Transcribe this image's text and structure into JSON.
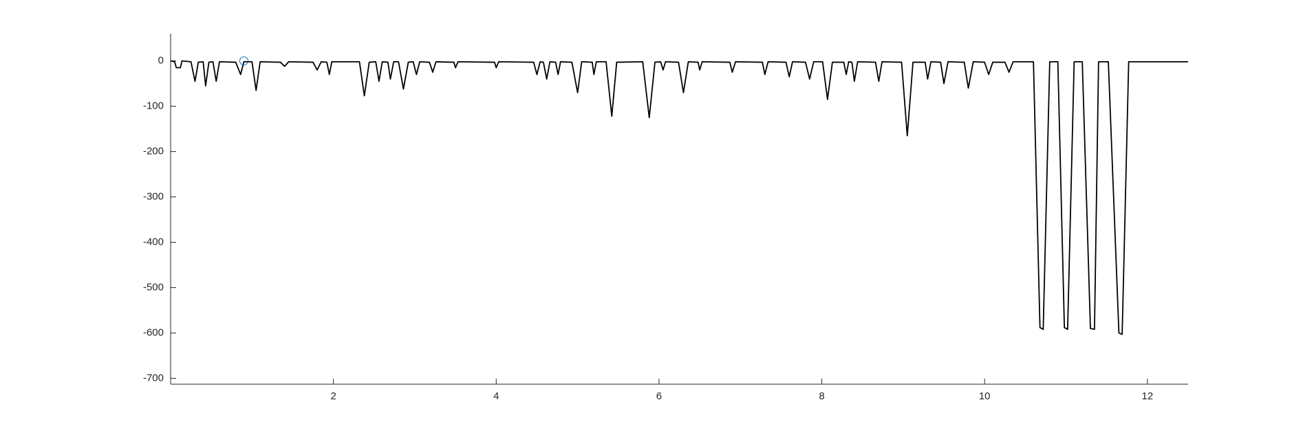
{
  "chart_data": {
    "type": "line",
    "x": [
      0,
      0.05,
      0.07,
      0.12,
      0.14,
      0.25,
      0.3,
      0.34,
      0.4,
      0.43,
      0.47,
      0.52,
      0.56,
      0.6,
      0.8,
      0.86,
      0.9,
      1.0,
      1.05,
      1.1,
      1.35,
      1.4,
      1.45,
      1.75,
      1.8,
      1.85,
      1.92,
      1.95,
      1.98,
      2.32,
      2.38,
      2.44,
      2.52,
      2.56,
      2.6,
      2.67,
      2.7,
      2.74,
      2.8,
      2.86,
      2.92,
      2.98,
      3.02,
      3.06,
      3.18,
      3.22,
      3.26,
      3.48,
      3.5,
      3.53,
      3.98,
      4.0,
      4.03,
      4.46,
      4.5,
      4.54,
      4.58,
      4.62,
      4.66,
      4.73,
      4.76,
      4.79,
      4.93,
      5.0,
      5.05,
      5.18,
      5.2,
      5.23,
      5.35,
      5.42,
      5.48,
      5.8,
      5.88,
      5.95,
      6.02,
      6.05,
      6.08,
      6.24,
      6.3,
      6.36,
      6.48,
      6.5,
      6.53,
      6.87,
      6.9,
      6.94,
      7.27,
      7.3,
      7.34,
      7.56,
      7.6,
      7.64,
      7.8,
      7.85,
      7.9,
      8.01,
      8.07,
      8.13,
      8.27,
      8.3,
      8.33,
      8.37,
      8.4,
      8.44,
      8.66,
      8.7,
      8.74,
      8.98,
      9.05,
      9.12,
      9.27,
      9.3,
      9.34,
      9.46,
      9.5,
      9.55,
      9.75,
      9.8,
      9.86,
      10.0,
      10.05,
      10.1,
      10.25,
      10.3,
      10.35,
      10.6,
      10.68,
      10.72,
      10.8,
      10.9,
      10.98,
      11.02,
      11.1,
      11.2,
      11.3,
      11.35,
      11.4,
      11.52,
      11.65,
      11.69,
      11.77,
      12.5
    ],
    "series": [
      {
        "color": "#000000",
        "values": [
          0,
          -2,
          -15,
          -15,
          0,
          -2,
          -45,
          -3,
          -2,
          -55,
          -3,
          -2,
          -45,
          -2,
          -3,
          -30,
          -2,
          -2,
          -65,
          -2,
          -3,
          -12,
          -2,
          -3,
          -20,
          -2,
          -3,
          -30,
          -2,
          -2,
          -77,
          -3,
          -2,
          -45,
          -2,
          -3,
          -40,
          -2,
          -2,
          -62,
          -3,
          -2,
          -30,
          -2,
          -3,
          -25,
          -2,
          -3,
          -15,
          -2,
          -3,
          -15,
          -2,
          -3,
          -30,
          -2,
          -3,
          -40,
          -2,
          -3,
          -30,
          -2,
          -3,
          -70,
          -2,
          -3,
          -30,
          -2,
          -2,
          -122,
          -3,
          -2,
          -125,
          -3,
          -2,
          -20,
          -2,
          -3,
          -70,
          -2,
          -3,
          -20,
          -2,
          -3,
          -25,
          -2,
          -3,
          -30,
          -2,
          -3,
          -35,
          -2,
          -3,
          -40,
          -2,
          -2,
          -85,
          -3,
          -3,
          -30,
          -2,
          -3,
          -45,
          -2,
          -3,
          -45,
          -2,
          -3,
          -165,
          -3,
          -3,
          -40,
          -2,
          -3,
          -50,
          -2,
          -3,
          -60,
          -2,
          -3,
          -30,
          -3,
          -3,
          -25,
          -2,
          -2,
          -588,
          -592,
          -2,
          -2,
          -588,
          -592,
          -2,
          -2,
          -590,
          -592,
          -2,
          -2,
          -600,
          -603,
          -2,
          -2
        ]
      }
    ],
    "marker": {
      "x": 0.9,
      "y": 0,
      "color": "#0072bd"
    },
    "xlim": [
      0,
      12.5
    ],
    "ylim": [
      -713,
      60
    ],
    "xticks": [
      2,
      4,
      6,
      8,
      10,
      12
    ],
    "yticks": [
      -700,
      -600,
      -500,
      -400,
      -300,
      -200,
      -100,
      0
    ],
    "grid": false
  }
}
